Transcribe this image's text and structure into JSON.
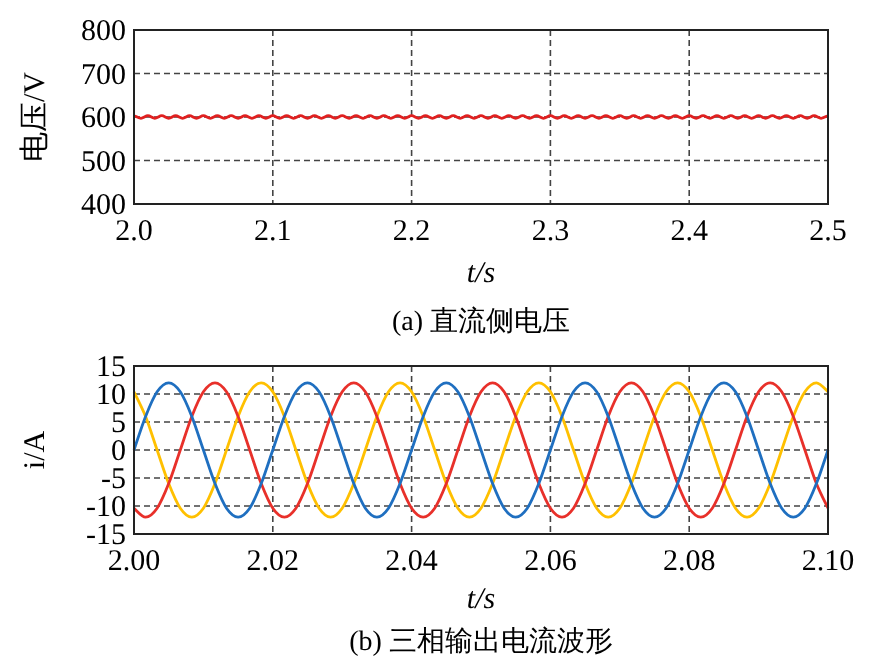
{
  "chart_data": [
    {
      "type": "line",
      "title": "(a) 直流侧电压",
      "xlabel": "t/s",
      "ylabel": "电压/V",
      "xlim": [
        2.0,
        2.5
      ],
      "ylim": [
        400,
        800
      ],
      "xticks": [
        {
          "value": 2.0,
          "label": "2.0"
        },
        2.1,
        2.2,
        2.3,
        2.4,
        {
          "value": 2.5,
          "label": "2.5"
        }
      ],
      "yticks": [
        400,
        500,
        600,
        700,
        800
      ],
      "grid": true,
      "x": [
        2.0,
        2.005,
        2.01,
        2.015,
        2.02,
        2.025,
        2.03,
        2.035,
        2.04,
        2.045,
        2.05,
        2.055,
        2.06,
        2.065,
        2.07,
        2.075,
        2.08,
        2.085,
        2.09,
        2.095,
        2.1,
        2.105,
        2.11,
        2.115,
        2.12,
        2.125,
        2.13,
        2.135,
        2.14,
        2.145,
        2.15,
        2.155,
        2.16,
        2.165,
        2.17,
        2.175,
        2.18,
        2.185,
        2.19,
        2.195,
        2.2,
        2.205,
        2.21,
        2.215,
        2.22,
        2.225,
        2.23,
        2.235,
        2.24,
        2.245,
        2.25,
        2.255,
        2.26,
        2.265,
        2.27,
        2.275,
        2.28,
        2.285,
        2.29,
        2.295,
        2.3,
        2.305,
        2.31,
        2.315,
        2.32,
        2.325,
        2.33,
        2.335,
        2.34,
        2.345,
        2.35,
        2.355,
        2.36,
        2.365,
        2.37,
        2.375,
        2.38,
        2.385,
        2.39,
        2.395,
        2.4,
        2.405,
        2.41,
        2.415,
        2.42,
        2.425,
        2.43,
        2.435,
        2.44,
        2.445,
        2.45,
        2.455,
        2.46,
        2.465,
        2.47,
        2.475,
        2.48,
        2.485,
        2.49,
        2.495,
        2.5
      ],
      "series": [
        {
          "color": "#e02020",
          "values": [
            603,
            597,
            603,
            597,
            603,
            597,
            603,
            597,
            603,
            597,
            603,
            597,
            603,
            597,
            603,
            597,
            603,
            597,
            603,
            597,
            603,
            597,
            603,
            597,
            603,
            597,
            603,
            597,
            603,
            597,
            603,
            597,
            603,
            597,
            603,
            597,
            603,
            597,
            603,
            597,
            603,
            597,
            603,
            597,
            603,
            597,
            603,
            597,
            603,
            597,
            603,
            597,
            603,
            597,
            603,
            597,
            603,
            597,
            603,
            597,
            603,
            597,
            603,
            597,
            603,
            597,
            603,
            597,
            603,
            597,
            603,
            597,
            603,
            597,
            603,
            597,
            603,
            597,
            603,
            597,
            603,
            597,
            603,
            597,
            603,
            597,
            603,
            597,
            603,
            597,
            603,
            597,
            603,
            597,
            603,
            597,
            603,
            597,
            603,
            597,
            603
          ]
        }
      ]
    },
    {
      "type": "line",
      "title": "(b) 三相输出电流波形",
      "xlabel": "t/s",
      "ylabel": "i/A",
      "xlim": [
        2.0,
        2.1
      ],
      "ylim": [
        -15,
        15
      ],
      "xticks": [
        {
          "value": 2.0,
          "label": "2.00"
        },
        2.02,
        2.04,
        2.06,
        2.08,
        {
          "value": 2.1,
          "label": "2.10"
        }
      ],
      "yticks": [
        -15,
        -10,
        -5,
        0,
        5,
        10,
        15
      ],
      "grid": true,
      "x": [
        2.0,
        2.00167,
        2.00333,
        2.005,
        2.00667,
        2.00833,
        2.01,
        2.01167,
        2.01333,
        2.015,
        2.01667,
        2.01833,
        2.02,
        2.02167,
        2.02333,
        2.025,
        2.02667,
        2.02833,
        2.03,
        2.03167,
        2.03333,
        2.035,
        2.03667,
        2.03833,
        2.04,
        2.04167,
        2.04333,
        2.045,
        2.04667,
        2.04833,
        2.05,
        2.05167,
        2.05333,
        2.055,
        2.05667,
        2.05833,
        2.06,
        2.06167,
        2.06333,
        2.065,
        2.06667,
        2.06833,
        2.07,
        2.07167,
        2.07333,
        2.075,
        2.07667,
        2.07833,
        2.08,
        2.08167,
        2.08333,
        2.085,
        2.08667,
        2.08833,
        2.09,
        2.09167,
        2.09333,
        2.095,
        2.09667,
        2.09833,
        2.1
      ],
      "series": [
        {
          "color": "#ffc000",
          "values": [
            10.4,
            6,
            0,
            -6,
            -10.4,
            -12,
            -10.4,
            -6,
            0,
            6,
            10.4,
            12,
            10.4,
            6,
            0,
            -6,
            -10.4,
            -12,
            -10.4,
            -6,
            0,
            6,
            10.4,
            12,
            10.4,
            6,
            0,
            -6,
            -10.4,
            -12,
            -10.4,
            -6,
            0,
            6,
            10.4,
            12,
            10.4,
            6,
            0,
            -6,
            -10.4,
            -12,
            -10.4,
            -6,
            0,
            6,
            10.4,
            12,
            10.4,
            6,
            0,
            -6,
            -10.4,
            -12,
            -10.4,
            -6,
            0,
            6,
            10.4,
            12,
            10.4
          ]
        },
        {
          "color": "#e8302a",
          "values": [
            -10.4,
            -12,
            -10.4,
            -6,
            0,
            6,
            10.4,
            12,
            10.4,
            6,
            0,
            -6,
            -10.4,
            -12,
            -10.4,
            -6,
            0,
            6,
            10.4,
            12,
            10.4,
            6,
            0,
            -6,
            -10.4,
            -12,
            -10.4,
            -6,
            0,
            6,
            10.4,
            12,
            10.4,
            6,
            0,
            -6,
            -10.4,
            -12,
            -10.4,
            -6,
            0,
            6,
            10.4,
            12,
            10.4,
            6,
            0,
            -6,
            -10.4,
            -12,
            -10.4,
            -6,
            0,
            6,
            10.4,
            12,
            10.4,
            6,
            0,
            -6,
            -10.4
          ]
        },
        {
          "color": "#1f6fc0",
          "values": [
            0,
            6,
            10.4,
            12,
            10.4,
            6,
            0,
            -6,
            -10.4,
            -12,
            -10.4,
            -6,
            0,
            6,
            10.4,
            12,
            10.4,
            6,
            0,
            -6,
            -10.4,
            -12,
            -10.4,
            -6,
            0,
            6,
            10.4,
            12,
            10.4,
            6,
            0,
            -6,
            -10.4,
            -12,
            -10.4,
            -6,
            0,
            6,
            10.4,
            12,
            10.4,
            6,
            0,
            -6,
            -10.4,
            -12,
            -10.4,
            -6,
            0,
            6,
            10.4,
            12,
            10.4,
            6,
            0,
            -6,
            -10.4,
            -12,
            -10.4,
            -6,
            0
          ]
        }
      ]
    }
  ]
}
